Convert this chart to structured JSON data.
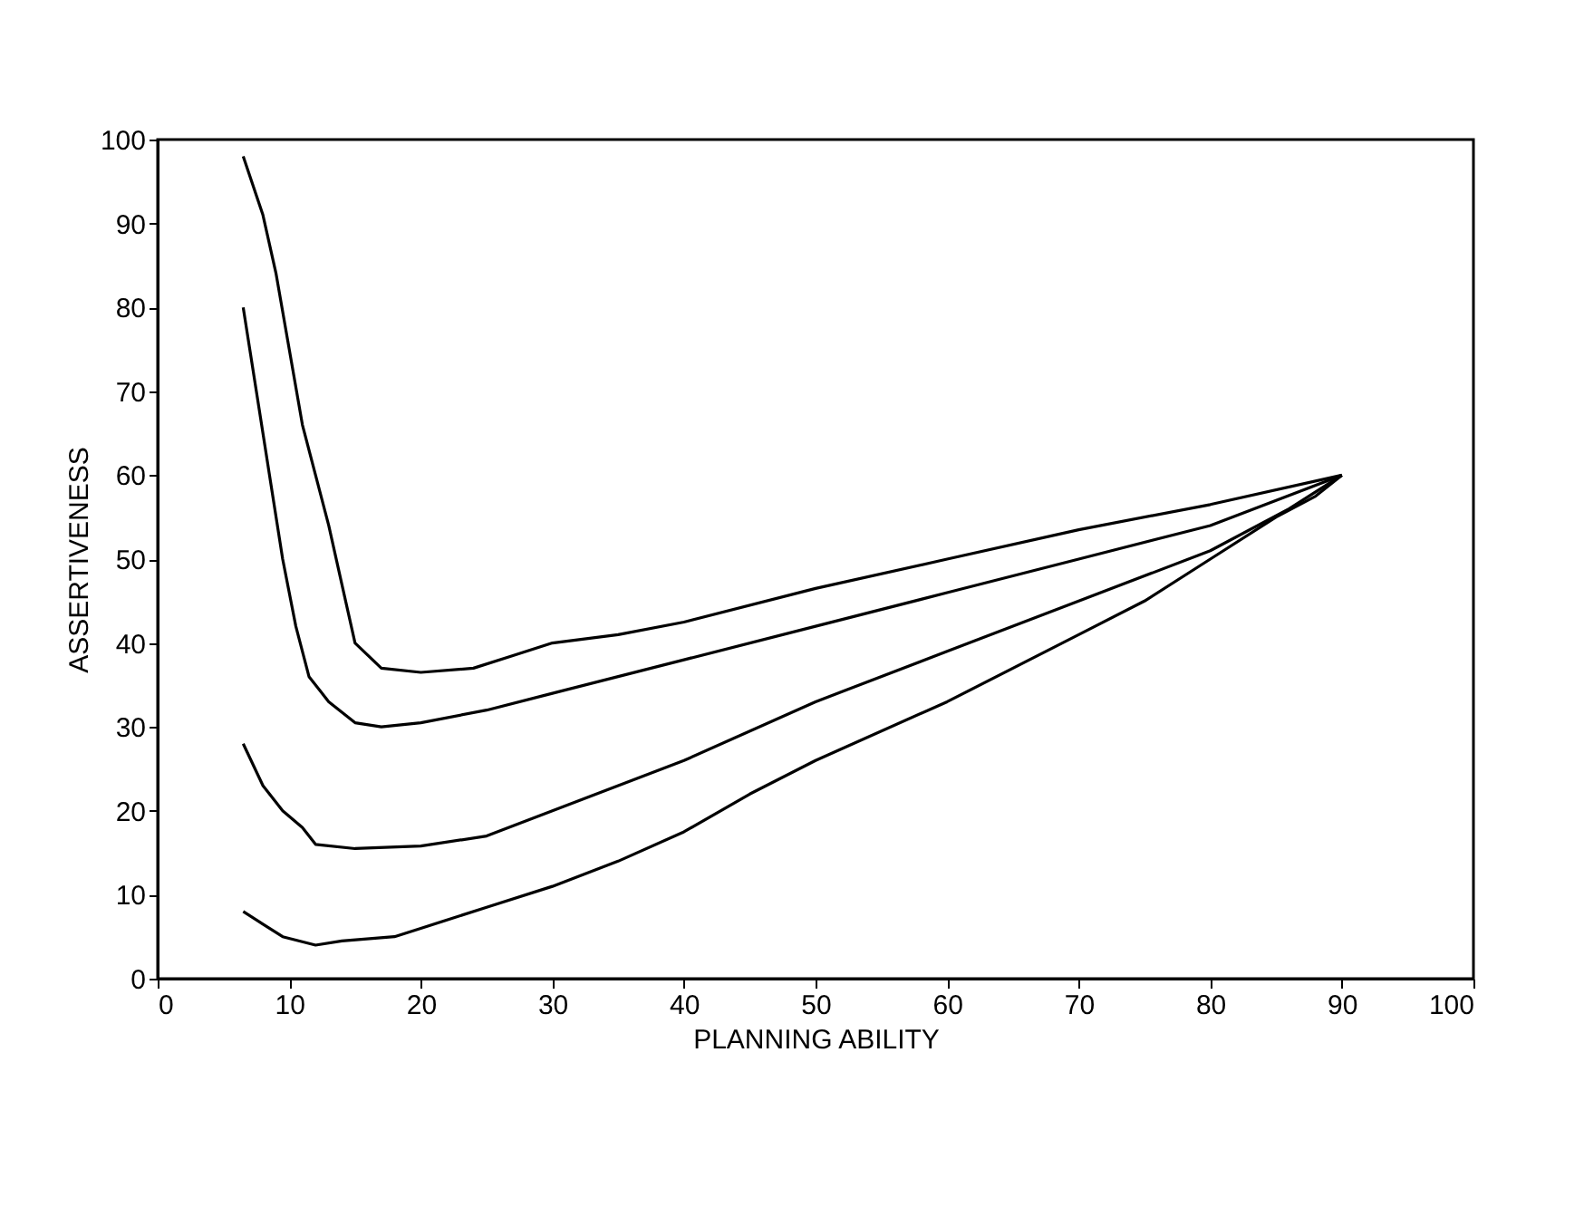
{
  "chart_data": {
    "type": "line",
    "xlabel": "PLANNING ABILITY",
    "ylabel": "ASSERTIVENESS",
    "xlim": [
      0,
      100
    ],
    "ylim": [
      0,
      100
    ],
    "xticks": [
      0,
      10,
      20,
      30,
      40,
      50,
      60,
      70,
      80,
      90,
      100
    ],
    "yticks": [
      0,
      10,
      20,
      30,
      40,
      50,
      60,
      70,
      80,
      90,
      100
    ],
    "grid": false,
    "legend": false,
    "marker": "none",
    "line_style": "solid",
    "series": [
      {
        "color": "#000000",
        "x": [
          6.5,
          8,
          9,
          10,
          11,
          12,
          13,
          14,
          15,
          17,
          20,
          24,
          27,
          30,
          35,
          40,
          50,
          60,
          70,
          80,
          90
        ],
        "values": [
          98,
          91,
          84,
          75,
          66,
          60,
          54,
          47,
          40,
          37,
          36.5,
          37,
          38.5,
          40,
          41,
          42.5,
          46.5,
          50,
          53.5,
          56.5,
          60
        ]
      },
      {
        "color": "#000000",
        "x": [
          6.5,
          7.5,
          8.5,
          9.5,
          10.5,
          11.5,
          13,
          15,
          17,
          20,
          25,
          30,
          40,
          50,
          60,
          70,
          80,
          90
        ],
        "values": [
          80,
          70,
          60,
          50,
          42,
          36,
          33,
          30.5,
          30,
          30.5,
          32,
          34,
          38,
          42,
          46,
          50,
          54,
          60
        ]
      },
      {
        "color": "#000000",
        "x": [
          6.5,
          8,
          9.5,
          11,
          12,
          15,
          20,
          25,
          30,
          40,
          50,
          60,
          70,
          80,
          86,
          90
        ],
        "values": [
          28,
          23,
          20,
          18,
          16,
          15.5,
          15.8,
          17,
          20,
          26,
          33,
          39,
          45,
          51,
          56,
          60
        ]
      },
      {
        "color": "#000000",
        "x": [
          6.5,
          8,
          9.5,
          12,
          14,
          18,
          20,
          25,
          30,
          35,
          40,
          45,
          50,
          60,
          70,
          75,
          80,
          85,
          88,
          90
        ],
        "values": [
          8,
          6.5,
          5,
          4,
          4.5,
          5,
          6,
          8.5,
          11,
          14,
          17.5,
          22,
          26,
          33,
          41,
          45,
          50,
          55,
          57.5,
          60
        ]
      }
    ]
  }
}
